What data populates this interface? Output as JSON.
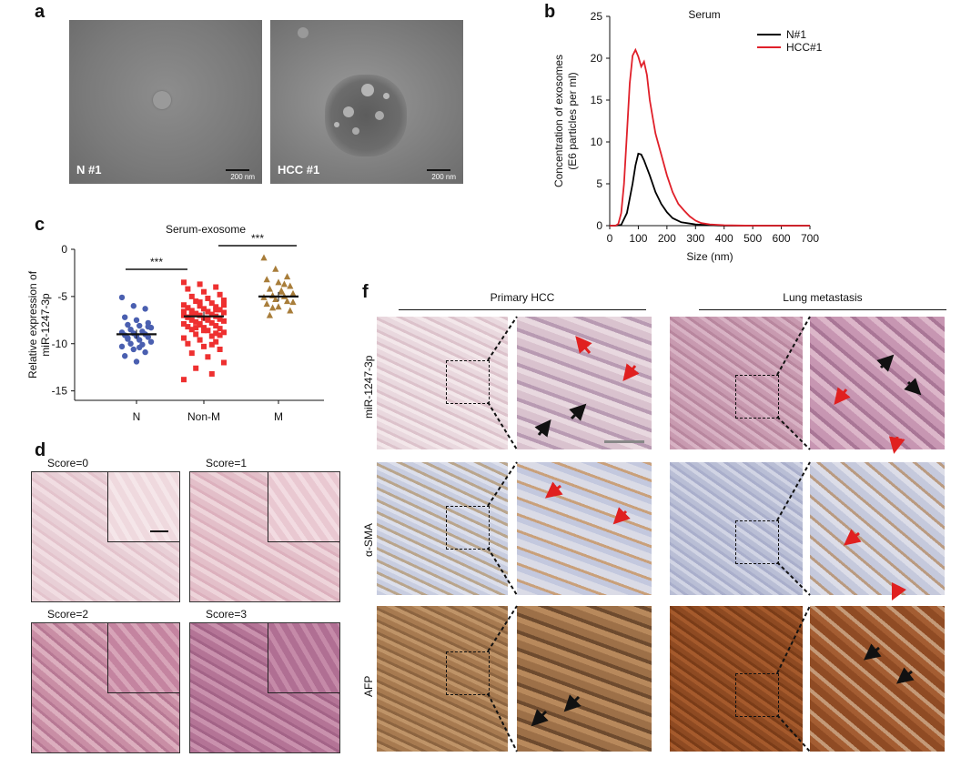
{
  "panels": {
    "a": {
      "label": "a",
      "images": [
        {
          "label": "N #1",
          "scale": "200 nm"
        },
        {
          "label": "HCC #1",
          "scale": "200 nm"
        }
      ]
    },
    "b": {
      "label": "b"
    },
    "c": {
      "label": "c"
    },
    "d": {
      "label": "d",
      "scores": [
        "Score=0",
        "Score=1",
        "Score=2",
        "Score=3"
      ]
    },
    "f": {
      "label": "f",
      "columns": [
        "Primary HCC",
        "Lung metastasis"
      ],
      "rows": [
        "miR-1247-3p",
        "α-SMA",
        "AFP"
      ]
    }
  },
  "colors": {
    "n_line": "#000000",
    "hcc_line": "#e0202a",
    "blue_pts": "#4a5fb0",
    "red_pts": "#ee3030",
    "brown_pts": "#a87d3a"
  },
  "chart_data": [
    {
      "type": "line",
      "title": "Serum",
      "xlabel": "Size (nm)",
      "ylabel": "Concentration of exosomes (E6 particles per ml)",
      "ylabel_lines": [
        "Concentration of exosomes",
        "(E6 particles per ml)"
      ],
      "xlim": [
        0,
        700
      ],
      "ylim": [
        0,
        25
      ],
      "xticks": [
        0,
        100,
        200,
        300,
        400,
        500,
        600,
        700
      ],
      "yticks": [
        0,
        5,
        10,
        15,
        20,
        25
      ],
      "legend": "top-right",
      "series": [
        {
          "name": "N#1",
          "x": [
            0,
            20,
            40,
            60,
            80,
            90,
            100,
            110,
            120,
            140,
            160,
            180,
            200,
            220,
            250,
            300,
            350,
            400,
            500,
            600,
            700
          ],
          "y": [
            0,
            0,
            0.1,
            1.5,
            5,
            7.2,
            8.6,
            8.5,
            7.8,
            6,
            4,
            2.6,
            1.6,
            0.9,
            0.4,
            0.15,
            0.05,
            0,
            0,
            0,
            0
          ]
        },
        {
          "name": "HCC#1",
          "x": [
            0,
            20,
            30,
            40,
            50,
            60,
            70,
            80,
            90,
            100,
            110,
            120,
            130,
            140,
            150,
            160,
            180,
            200,
            220,
            240,
            260,
            280,
            300,
            320,
            350,
            400,
            450,
            500,
            600,
            700
          ],
          "y": [
            0,
            0,
            0.2,
            1.5,
            5,
            11,
            17,
            20.3,
            21,
            20.2,
            19,
            19.6,
            18,
            15,
            13,
            11,
            8.5,
            6,
            4,
            2.6,
            1.8,
            1.1,
            0.6,
            0.3,
            0.15,
            0.05,
            0.02,
            0,
            0,
            0
          ]
        }
      ]
    },
    {
      "type": "scatter",
      "title": "Serum-exosome",
      "xlabel": "",
      "ylabel": "Relative expression of miR-1247-3p",
      "ylabel_lines": [
        "Relative expression of",
        "miR-1247-3p"
      ],
      "categories": [
        "N",
        "Non-M",
        "M"
      ],
      "ylim": [
        -16,
        0
      ],
      "yticks": [
        0,
        -5,
        -10,
        -15
      ],
      "means": [
        -9.0,
        -7.1,
        -5.0
      ],
      "significance": [
        {
          "from": "N",
          "to": "Non-M",
          "label": "***"
        },
        {
          "from": "Non-M",
          "to": "M",
          "label": "***"
        }
      ],
      "series": [
        {
          "category": "N",
          "values": [
            -5.1,
            -6.0,
            -6.3,
            -7.2,
            -7.5,
            -7.8,
            -8.0,
            -8.1,
            -8.3,
            -8.5,
            -8.7,
            -8.8,
            -8.9,
            -9.0,
            -9.1,
            -9.2,
            -9.3,
            -9.4,
            -9.6,
            -9.8,
            -10.0,
            -10.1,
            -10.3,
            -10.6,
            -10.9,
            -11.3,
            -11.9,
            -8.2,
            -9.5,
            -10.4
          ]
        },
        {
          "category": "Non-M",
          "values": [
            -3.5,
            -3.7,
            -4.0,
            -4.2,
            -4.5,
            -4.8,
            -5.0,
            -5.2,
            -5.4,
            -5.5,
            -5.7,
            -5.9,
            -6.0,
            -6.1,
            -6.2,
            -6.3,
            -6.4,
            -6.5,
            -6.6,
            -6.7,
            -6.8,
            -6.9,
            -7.0,
            -7.0,
            -7.1,
            -7.2,
            -7.3,
            -7.4,
            -7.5,
            -7.5,
            -7.6,
            -7.7,
            -7.8,
            -7.9,
            -8.0,
            -8.1,
            -8.2,
            -8.3,
            -8.4,
            -8.5,
            -8.6,
            -8.8,
            -9.0,
            -9.2,
            -9.4,
            -9.6,
            -9.8,
            -10.0,
            -10.3,
            -10.6,
            -11.0,
            -11.4,
            -12.0,
            -12.6,
            -13.2,
            -13.8,
            -5.6,
            -6.4,
            -7.2,
            -8.6,
            -9.1,
            -6.9,
            -7.4,
            -5.9,
            -8.3,
            -10.1,
            -6.6,
            -7.9,
            -8.9,
            -6.2
          ]
        },
        {
          "category": "M",
          "values": [
            -0.9,
            -2.1,
            -2.9,
            -3.2,
            -3.5,
            -3.9,
            -4.2,
            -4.5,
            -4.7,
            -4.9,
            -5.0,
            -5.1,
            -5.3,
            -5.5,
            -5.8,
            -6.1,
            -6.5,
            -7.0,
            -4.4,
            -5.6,
            -6.2,
            -3.7
          ]
        }
      ]
    }
  ]
}
